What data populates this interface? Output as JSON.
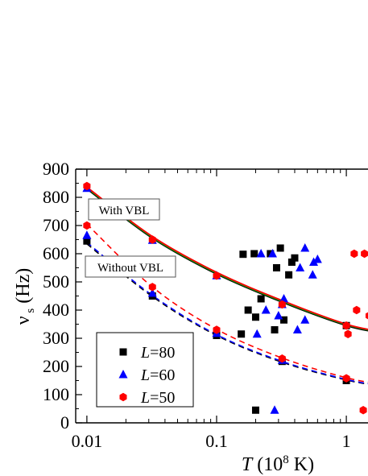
{
  "chart_data": {
    "type": "scatter",
    "title": "",
    "xlabel": {
      "var": "T",
      "unit": "(10",
      "exp": "8",
      "unit_end": " K)"
    },
    "ylabel": {
      "var": "ν",
      "sub": "s",
      "unit": "(Hz)"
    },
    "x_scale": "log",
    "xlim": [
      0.0082,
      1.9
    ],
    "ylim": [
      0,
      900
    ],
    "x_ticks": [
      0.01,
      0.1,
      1
    ],
    "x_tick_labels": [
      "0.01",
      "0.1",
      "1"
    ],
    "y_ticks": [
      0,
      100,
      200,
      300,
      400,
      500,
      600,
      700,
      800,
      900
    ],
    "y_tick_labels": [
      "0",
      "100",
      "200",
      "300",
      "400",
      "500",
      "600",
      "700",
      "800",
      "900"
    ],
    "grid": false,
    "legend_position": "lower-left",
    "annotations": [
      {
        "text": "With VBL"
      },
      {
        "text": "Without VBL"
      }
    ],
    "series": [
      {
        "key": "L80",
        "name": {
          "var": "L",
          "rest": "=80"
        },
        "marker": "square",
        "color": "#000000",
        "points": [
          [
            0.01,
            645
          ],
          [
            0.032,
            450
          ],
          [
            0.1,
            310
          ],
          [
            0.32,
            218
          ],
          [
            1.0,
            345
          ],
          [
            1.0,
            150
          ],
          [
            0.155,
            315
          ],
          [
            0.175,
            400
          ],
          [
            0.16,
            598
          ],
          [
            0.195,
            600
          ],
          [
            0.2,
            375
          ],
          [
            0.22,
            440
          ],
          [
            0.26,
            600
          ],
          [
            0.29,
            550
          ],
          [
            0.31,
            620
          ],
          [
            0.33,
            365
          ],
          [
            0.36,
            525
          ],
          [
            0.38,
            570
          ],
          [
            0.4,
            585
          ],
          [
            0.28,
            330
          ],
          [
            0.2,
            45
          ]
        ],
        "fit_with_vbl": {
          "color": "#000000",
          "x": [
            0.01,
            0.032,
            0.1,
            0.32,
            1.0,
            1.9
          ],
          "y": [
            830,
            655,
            528,
            428,
            345,
            318
          ]
        },
        "fit_without_vbl": {
          "color": "#000000",
          "x": [
            0.01,
            0.032,
            0.1,
            0.32,
            1.0,
            1.9
          ],
          "y": [
            635,
            448,
            310,
            215,
            152,
            130
          ]
        }
      },
      {
        "key": "L60",
        "name": {
          "var": "L",
          "rest": "=60"
        },
        "marker": "triangle",
        "color": "#0000ff",
        "points": [
          [
            0.01,
            665
          ],
          [
            0.01,
            832
          ],
          [
            0.032,
            460
          ],
          [
            0.032,
            648
          ],
          [
            0.1,
            318
          ],
          [
            0.1,
            522
          ],
          [
            0.32,
            222
          ],
          [
            0.32,
            420
          ],
          [
            0.205,
            315
          ],
          [
            0.22,
            600
          ],
          [
            0.24,
            400
          ],
          [
            0.27,
            600
          ],
          [
            0.3,
            380
          ],
          [
            0.33,
            440
          ],
          [
            0.42,
            330
          ],
          [
            0.44,
            550
          ],
          [
            0.48,
            365
          ],
          [
            0.48,
            620
          ],
          [
            0.55,
            525
          ],
          [
            0.56,
            570
          ],
          [
            0.6,
            580
          ],
          [
            0.28,
            45
          ]
        ],
        "fit_with_vbl": {
          "color": "#00a000",
          "x": [
            0.01,
            0.032,
            0.1,
            0.32,
            1.0,
            1.9
          ],
          "y": [
            833,
            658,
            531,
            431,
            348,
            321
          ]
        },
        "fit_without_vbl": {
          "color": "#0000ff",
          "x": [
            0.01,
            0.032,
            0.1,
            0.32,
            1.0,
            1.9
          ],
          "y": [
            640,
            452,
            313,
            218,
            154,
            132
          ]
        }
      },
      {
        "key": "L50",
        "name": {
          "var": "L",
          "rest": "=50"
        },
        "marker": "hexagon",
        "color": "#ff0000",
        "points": [
          [
            0.01,
            840
          ],
          [
            0.01,
            700
          ],
          [
            0.032,
            650
          ],
          [
            0.032,
            482
          ],
          [
            0.1,
            522
          ],
          [
            0.1,
            330
          ],
          [
            0.32,
            420
          ],
          [
            0.32,
            228
          ],
          [
            1.0,
            345
          ],
          [
            1.0,
            158
          ],
          [
            1.03,
            315
          ],
          [
            1.2,
            400
          ],
          [
            1.15,
            600
          ],
          [
            1.38,
            600
          ],
          [
            1.5,
            380
          ],
          [
            1.35,
            45
          ],
          [
            1.8,
            440
          ]
        ],
        "fit_with_vbl": {
          "color": "#ff0000",
          "x": [
            0.01,
            0.032,
            0.1,
            0.32,
            1.0,
            1.9
          ],
          "y": [
            836,
            661,
            534,
            434,
            350,
            323
          ]
        },
        "fit_without_vbl": {
          "color": "#ff0000",
          "x": [
            0.01,
            0.032,
            0.1,
            0.32,
            1.0,
            1.9
          ],
          "y": [
            705,
            482,
            332,
            230,
            160,
            137
          ]
        }
      }
    ]
  }
}
